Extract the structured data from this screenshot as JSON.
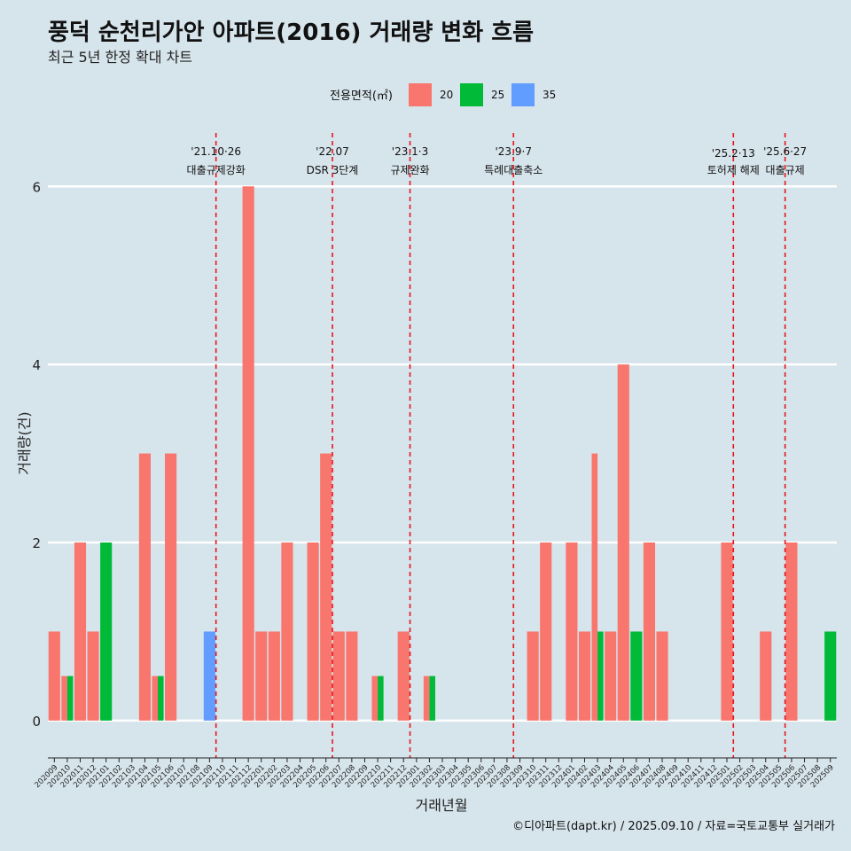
{
  "chart_data": {
    "type": "bar",
    "title": "풍덕 순천리가안 아파트(2016) 거래량 변화 흐름",
    "subtitle": "최근 5년 한정 확대 차트",
    "xlabel": "거래년월",
    "ylabel": "거래량(건)",
    "caption": "©디아파트(dapt.kr) / 2025.09.10 / 자료=국토교통부 실거래가",
    "ylim": [
      -0.3,
      6.6
    ],
    "yticks": [
      0,
      2,
      4,
      6
    ],
    "grid": "horizontal",
    "legend": {
      "title": "전용면적(㎡)",
      "position": "top",
      "entries": [
        {
          "name": "20",
          "color": "#f8766d"
        },
        {
          "name": "25",
          "color": "#00ba38"
        },
        {
          "name": "35",
          "color": "#619cff"
        }
      ]
    },
    "categories": [
      "202009",
      "202010",
      "202011",
      "202012",
      "202101",
      "202102",
      "202103",
      "202104",
      "202105",
      "202106",
      "202107",
      "202108",
      "202109",
      "202110",
      "202111",
      "202112",
      "202201",
      "202202",
      "202203",
      "202204",
      "202205",
      "202206",
      "202207",
      "202208",
      "202209",
      "202210",
      "202211",
      "202212",
      "202301",
      "202302",
      "202303",
      "202304",
      "202305",
      "202306",
      "202307",
      "202308",
      "202309",
      "202310",
      "202311",
      "202312",
      "202401",
      "202402",
      "202403",
      "202404",
      "202405",
      "202406",
      "202407",
      "202408",
      "202409",
      "202410",
      "202411",
      "202412",
      "202501",
      "202502",
      "202503",
      "202504",
      "202505",
      "202506",
      "202507",
      "202508",
      "202509"
    ],
    "series": [
      {
        "name": "20",
        "color": "#f8766d",
        "values": [
          1,
          0.5,
          2,
          1,
          0,
          0,
          0,
          3,
          0.5,
          3,
          0,
          0,
          0,
          0,
          0,
          6,
          1,
          1,
          2,
          0,
          2,
          3,
          1,
          1,
          0,
          0.5,
          0,
          1,
          0,
          0.5,
          0,
          0,
          0,
          0,
          0,
          0,
          0,
          1,
          2,
          0,
          2,
          1,
          3,
          1,
          4,
          0,
          2,
          1,
          0,
          0,
          0,
          0,
          2,
          0,
          0,
          1,
          0,
          2,
          0,
          0,
          0
        ]
      },
      {
        "name": "25",
        "color": "#00ba38",
        "values": [
          0,
          0.5,
          0,
          0,
          2,
          0,
          0,
          0,
          0.5,
          0,
          0,
          0,
          0,
          0,
          0,
          0,
          0,
          0,
          0,
          0,
          0,
          0,
          0,
          0,
          0,
          0.5,
          0,
          0,
          0,
          0.5,
          0,
          0,
          0,
          0,
          0,
          0,
          0,
          0,
          0,
          0,
          0,
          0,
          1,
          0,
          0,
          1,
          0,
          0,
          0,
          0,
          0,
          0,
          0,
          0,
          0,
          0,
          0,
          0,
          0,
          0,
          1
        ]
      },
      {
        "name": "35",
        "color": "#619cff",
        "values": [
          0,
          0,
          0,
          0,
          0,
          0,
          0,
          0,
          0,
          0,
          0,
          0,
          1,
          0,
          0,
          0,
          0,
          0,
          0,
          0,
          0,
          0,
          0,
          0,
          0,
          0,
          0,
          0,
          0,
          0,
          0,
          0,
          0,
          0,
          0,
          0,
          0,
          0,
          0,
          0,
          0,
          0,
          0,
          0,
          0,
          0,
          0,
          0,
          0,
          0,
          0,
          0,
          0,
          0,
          0,
          0,
          0,
          0,
          0,
          0,
          0
        ]
      }
    ],
    "events": [
      {
        "date": "'21.10·26",
        "name": "대출규제강화",
        "x": "202110"
      },
      {
        "date": "'22.07",
        "name": "DSR 3단계",
        "x": "202207"
      },
      {
        "date": "'23.1·3",
        "name": "규제완화",
        "x": "202301"
      },
      {
        "date": "'23.9·7",
        "name": "특례대출축소",
        "x": "202309"
      },
      {
        "date": "'25.2·13",
        "name": "토허제 해제",
        "x": "202502"
      },
      {
        "date": "'25.6·27",
        "name": "대출규제",
        "x": "202506"
      }
    ]
  }
}
